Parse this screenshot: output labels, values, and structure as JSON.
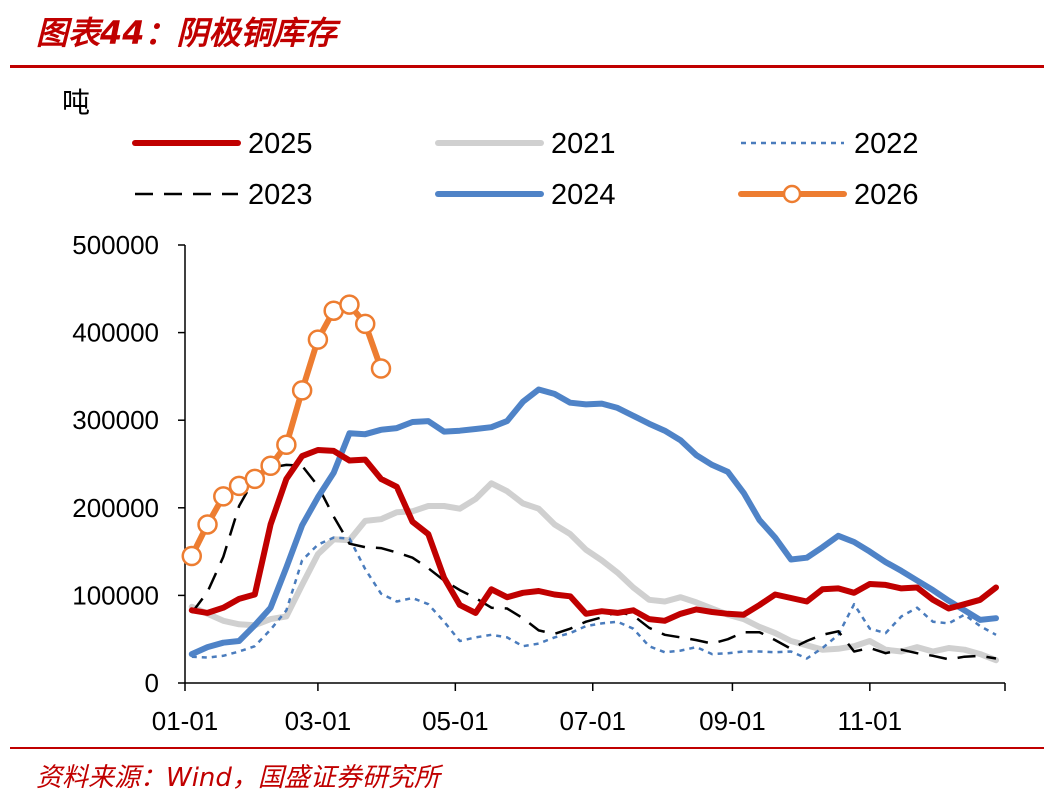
{
  "header": {
    "title": "图表44：阴极铜库存"
  },
  "footer": {
    "source": "资料来源：Wind，国盛证券研究所"
  },
  "chart_data": {
    "type": "line",
    "ylabel": "吨",
    "ylim": [
      0,
      500000
    ],
    "yticks": [
      0,
      100000,
      200000,
      300000,
      400000,
      500000
    ],
    "xlim": [
      1,
      365
    ],
    "xtick_labels": [
      "01-01",
      "03-01",
      "05-01",
      "07-01",
      "09-01",
      "11-01"
    ],
    "xtick_days": [
      1,
      60,
      121,
      182,
      244,
      305
    ],
    "legend": "top",
    "series": [
      {
        "name": "2025",
        "color": "#c00000",
        "dash": "",
        "width": 6,
        "x": [
          4,
          11,
          18,
          25,
          32,
          39,
          46,
          53,
          60,
          67,
          74,
          81,
          88,
          95,
          102,
          109,
          116,
          123,
          130,
          137,
          144,
          151,
          158,
          165,
          172,
          179,
          186,
          193,
          200,
          207,
          214,
          221,
          228,
          235,
          242,
          249,
          256,
          263,
          270,
          277,
          284,
          291,
          298,
          305,
          312,
          319,
          326,
          333,
          340,
          347,
          354,
          361
        ],
        "y": [
          83000,
          80000,
          86000,
          96000,
          101000,
          181000,
          233000,
          259000,
          266000,
          265000,
          254000,
          255000,
          233000,
          224000,
          184000,
          170000,
          120000,
          89000,
          80000,
          107000,
          98000,
          103000,
          105000,
          101000,
          99000,
          79000,
          82000,
          80000,
          83000,
          73000,
          71000,
          79000,
          84000,
          81000,
          79000,
          78000,
          89000,
          101000,
          97000,
          93000,
          107000,
          108000,
          103000,
          113000,
          112000,
          108000,
          109000,
          95000,
          85000,
          90000,
          95000,
          109000
        ]
      },
      {
        "name": "2021",
        "color": "#d0d0d0",
        "dash": "",
        "width": 6,
        "x": [
          4,
          11,
          18,
          25,
          32,
          39,
          46,
          53,
          60,
          67,
          74,
          81,
          88,
          95,
          102,
          109,
          116,
          123,
          130,
          137,
          144,
          151,
          158,
          165,
          172,
          179,
          186,
          193,
          200,
          207,
          214,
          221,
          228,
          235,
          242,
          249,
          256,
          263,
          270,
          277,
          284,
          291,
          298,
          305,
          312,
          319,
          326,
          333,
          340,
          347,
          354,
          361
        ],
        "y": [
          87000,
          79000,
          71000,
          67000,
          66000,
          73000,
          76000,
          112000,
          147000,
          164000,
          163000,
          185000,
          187000,
          195000,
          196000,
          202000,
          202000,
          199000,
          210000,
          228000,
          219000,
          205000,
          199000,
          181000,
          170000,
          152000,
          140000,
          126000,
          109000,
          95000,
          93000,
          98000,
          92000,
          85000,
          78000,
          73000,
          64000,
          57000,
          48000,
          43000,
          38000,
          39000,
          42000,
          48000,
          38000,
          36000,
          41000,
          36000,
          40000,
          38000,
          33000,
          26000
        ]
      },
      {
        "name": "2022",
        "color": "#4a7cbd",
        "dash": "5,5",
        "width": 2.5,
        "x": [
          4,
          11,
          18,
          25,
          32,
          39,
          46,
          53,
          60,
          67,
          74,
          81,
          88,
          95,
          102,
          109,
          116,
          123,
          130,
          137,
          144,
          151,
          158,
          165,
          172,
          179,
          186,
          193,
          200,
          207,
          214,
          221,
          228,
          235,
          242,
          249,
          256,
          263,
          270,
          277,
          284,
          291,
          298,
          305,
          312,
          319,
          326,
          333,
          340,
          347,
          354,
          361
        ],
        "y": [
          30000,
          29000,
          31000,
          36000,
          42000,
          61000,
          83000,
          140000,
          158000,
          166000,
          165000,
          130000,
          102000,
          93000,
          97000,
          90000,
          70000,
          48000,
          52000,
          55000,
          52000,
          42000,
          45000,
          52000,
          57000,
          65000,
          68000,
          70000,
          62000,
          42000,
          35000,
          37000,
          41000,
          33000,
          34000,
          36000,
          36000,
          35000,
          36000,
          28000,
          40000,
          55000,
          90000,
          62000,
          57000,
          76000,
          86000,
          70000,
          68000,
          78000,
          65000,
          55000
        ]
      },
      {
        "name": "2023",
        "color": "#000000",
        "dash": "18,11",
        "width": 2.5,
        "x": [
          4,
          11,
          18,
          25,
          32,
          39,
          46,
          53,
          60,
          67,
          74,
          81,
          88,
          95,
          102,
          109,
          116,
          123,
          130,
          137,
          144,
          151,
          158,
          165,
          172,
          179,
          186,
          193,
          200,
          207,
          214,
          221,
          228,
          235,
          242,
          249,
          256,
          263,
          270,
          277,
          284,
          291,
          298,
          305,
          312,
          319,
          326,
          333,
          340,
          347,
          354,
          361
        ],
        "y": [
          80000,
          104000,
          144000,
          202000,
          234000,
          246000,
          249000,
          248000,
          225000,
          190000,
          159000,
          155000,
          154000,
          149000,
          143000,
          131000,
          117000,
          106000,
          97000,
          86000,
          85000,
          74000,
          60000,
          56000,
          62000,
          70000,
          75000,
          81000,
          77000,
          63000,
          55000,
          52000,
          49000,
          45000,
          50000,
          58000,
          58000,
          49000,
          39000,
          48000,
          55000,
          59000,
          36000,
          40000,
          34000,
          38000,
          34000,
          31000,
          27000,
          30000,
          31000,
          28000
        ]
      },
      {
        "name": "2024",
        "color": "#4f83c7",
        "dash": "",
        "width": 6,
        "x": [
          4,
          11,
          18,
          25,
          32,
          39,
          46,
          53,
          60,
          67,
          74,
          81,
          88,
          95,
          102,
          109,
          116,
          123,
          130,
          137,
          144,
          151,
          158,
          165,
          172,
          179,
          186,
          193,
          200,
          207,
          214,
          221,
          228,
          235,
          242,
          249,
          256,
          263,
          270,
          277,
          284,
          291,
          298,
          305,
          312,
          319,
          326,
          333,
          340,
          347,
          354,
          361
        ],
        "y": [
          33000,
          41000,
          46000,
          48000,
          66000,
          86000,
          132000,
          180000,
          212000,
          240000,
          285000,
          284000,
          289000,
          291000,
          298000,
          299000,
          287000,
          288000,
          290000,
          292000,
          299000,
          321000,
          335000,
          330000,
          320000,
          318000,
          319000,
          314000,
          305000,
          296000,
          288000,
          277000,
          260000,
          249000,
          241000,
          217000,
          186000,
          166000,
          141000,
          143000,
          155000,
          168000,
          161000,
          150000,
          138000,
          128000,
          117000,
          106000,
          94000,
          83000,
          72000,
          74000
        ]
      },
      {
        "name": "2026",
        "color": "#ed7d31",
        "dash": "",
        "width": 6,
        "markers": true,
        "x": [
          4,
          11,
          18,
          25,
          32,
          39,
          46,
          53,
          60,
          67,
          74,
          81,
          88
        ],
        "y": [
          145000,
          181000,
          213000,
          225000,
          233000,
          248000,
          272000,
          334000,
          392000,
          425000,
          432000,
          410000,
          359000
        ]
      }
    ]
  }
}
